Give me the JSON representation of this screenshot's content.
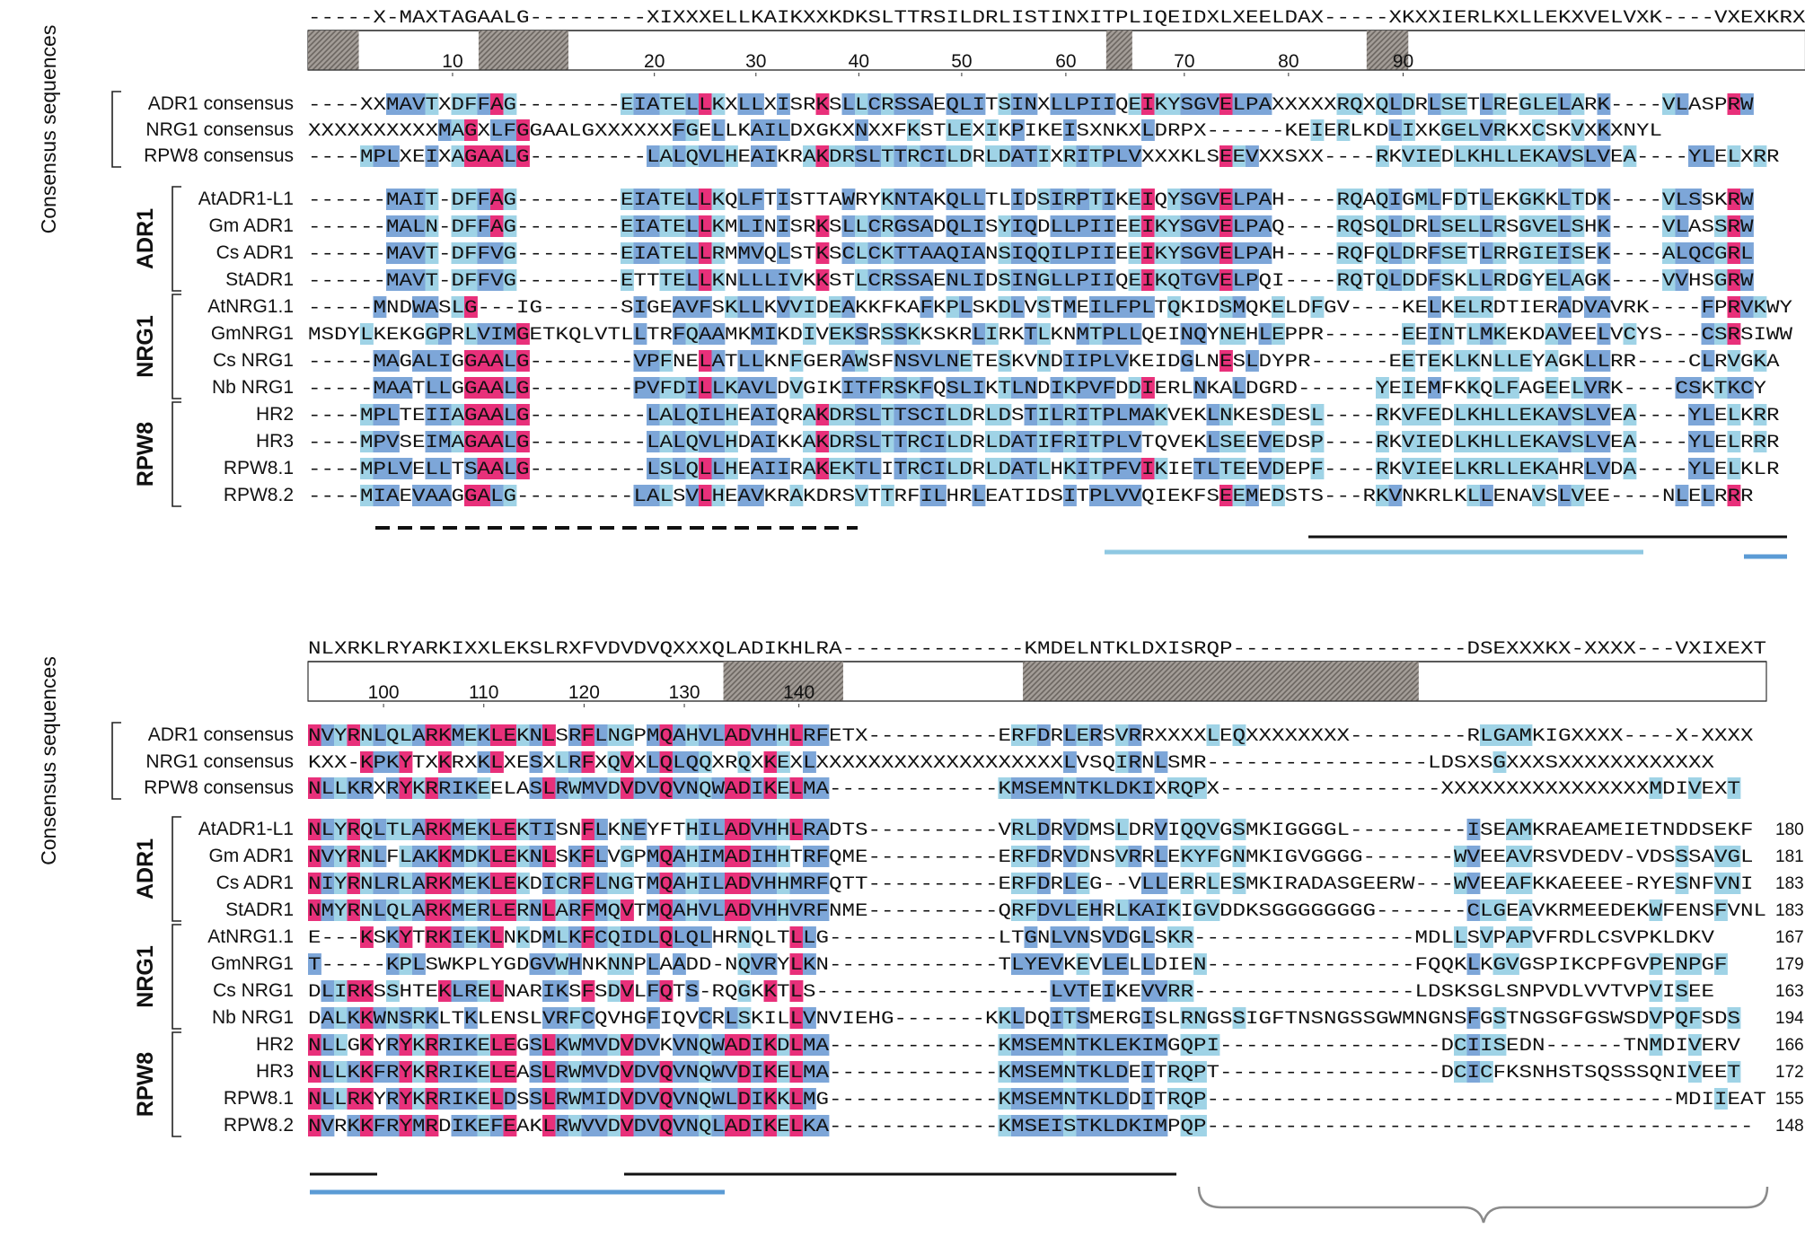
{
  "colors": {
    "conserved": "#e8307a",
    "similar": "#7da6d8",
    "weak": "#9fd3e6",
    "hatch": "#8c8580",
    "line_light": "#8fc8e2",
    "line_blue": "#5b9bd5",
    "brace": "#8a8a8a"
  },
  "axis_labels": {
    "consensus_group": "Consensus sequences"
  },
  "group_labels": {
    "adr1": "ADR1",
    "nrg1": "NRG1",
    "rpw8": "RPW8"
  },
  "blocks": [
    {
      "consensus": "-----X-MAXTAGAALG---------XIXXXELLKAIKXXKDKSLTTRSILDRLISTINXITPLIQEIDXLXEELDAX-----XKXXIERLKXLLEKXVELVXK----VXEXKRX",
      "ticks": [
        "10",
        "20",
        "30",
        "40",
        "50",
        "60",
        "70",
        "80",
        "90"
      ],
      "rows": [
        {
          "name": "ADR1 consensus",
          "seq": "----XXMAVTXDFFAG--------EIATELLKXLLXISRKSLLCRSSAEQLITSINXLLPIIQEIKYSGVELPAXXXXXRQXQLDRLSETLREGLELARK----VLASPRW",
          "len": ""
        },
        {
          "name": "NRG1 consensus",
          "seq": "XXXXXXXXXXMAGXLFGGAALGXXXXXXFGELLKAILDXGKXNXXFKSTLEXIKPIKEISXNKXLDRPX------KEIERLKDLIXKGELVRKXCSKVXKXNYL",
          "len": ""
        },
        {
          "name": "RPW8 consensus",
          "seq": "----MPLXEIXAGAALG---------LALQVLHEAIKRAKDRSLTTRCILDRLDATIXRITPLVXXXKLSEEVXXSXX----RKVIEDLKHLLEKAVSLVEA----YLELXRR",
          "len": ""
        },
        {
          "name": "AtADR1-L1",
          "seq": "------MAIT-DFFAG--------EIATELLKQLFTISTTAWRYKNTAKQLLTLIDSIRPTIKEIQYSGVELPAH----RQAQIGMLFDTLEKGKKLTDK----VLSSKRW",
          "len": ""
        },
        {
          "name": "Gm ADR1",
          "seq": "------MALN-DFFAG--------EIATELLKMLINISRKSLLCRGSADQLISYIQDLLPIIEEIKYSGVELPAQ----RQSQLDRLSELLRSGVELSHK----VLASSRW",
          "len": ""
        },
        {
          "name": "Cs ADR1",
          "seq": "------MAVT-DFFVG--------EIATELLRMMVQLSTKSCLCKTTAAQIANSIQQILPIIEEIKYSGVELPAH----RQFQLDRFSETLRRGIEISEK----ALQCGRL",
          "len": ""
        },
        {
          "name": "StADR1",
          "seq": "------MAVT-DFFVG--------ETTTELLKNLLLIVKKSTLCRSSAENLIDSINGLLPIIQEIKQTGVELPQI----RQTQLDDFSKLLRDGYELAGK----VVHSGRW",
          "len": ""
        },
        {
          "name": "AtNRG1.1",
          "seq": "-----MNDWASLG---IG------SIGEAVFSKLLKVVIDEAKKFKAFKPLSKDLVSTMEILFPLTQKIDSMQKELDFGV----KELKELRDTIERADVAVRK----FPRVKWY",
          "len": ""
        },
        {
          "name": "GmNRG1",
          "seq": "MSDYLKEKGGPRLVIMGETKQLVTLLTRFQAAMKMIKDIVEKSRSSKKSKRLIRKTLKNMTPLLQEINQYNEHLEPPR------EEINTLMKEKDAVEELVCYS---CSRSIWW",
          "len": ""
        },
        {
          "name": "Cs NRG1",
          "seq": "-----MAGALIGGAALG--------VPFNELATLLKNFGERAWSFNSVLNETESKVNDIIPLVKEIDGLNESLDYPR------EETEKLKNLLEYAGKLLRR----CLRVGKA",
          "len": ""
        },
        {
          "name": "Nb NRG1",
          "seq": "-----MAATLLGGAALG--------PVFDILLKAVLDVGIKITFRSKFQSLIKTLNDIKPVFDDIERLNKALDGRD------YEIEMFKKQLFAGEELVRK----CSKTKCY",
          "len": ""
        },
        {
          "name": "HR2",
          "seq": "----MPLTEIIAGAALG---------LALQILHEAIQRAKDRSLTTSCILDRLDSTILRITPLMAKVEKLNKESDESL----RKVFEDLKHLLEKAVSLVEA----YLELKRR",
          "len": ""
        },
        {
          "name": "HR3",
          "seq": "----MPVSEIMAGAALG---------LALQVLHDAIKKAKDRSLTTRCILDRLDATIFRITPLVTQVEKLSEEVEDSP----RKVIEDLKHLLEKAVSLVEA----YLELRRR",
          "len": ""
        },
        {
          "name": "RPW8.1",
          "seq": "----MPLVELLTSAALG---------LSLQLLHEAIIRAKEKTLITRCILDRLDATLHKITPFVIKIETLTEEVDEPF----RKVIEELKRLLEKAHRLVDA----YLELKLR",
          "len": ""
        },
        {
          "name": "RPW8.2",
          "seq": "----MIAEVAAGGALG---------LALSVLHEAVKRAKDRSVTTRFILHRLEATIDSITPLVVQIEKFSEEMEDSTS---RKVNKRLKLLENAVSLVEE----NLELRRR",
          "len": ""
        }
      ]
    },
    {
      "consensus": "NLXRKLRYARKIXXLEKSLRXFVDVDVQXXXQLADIKHLRA--------------KMDELNTKLDXISRQP------------------DSEXXXKX-XXXX---VXIXEXT",
      "ticks": [
        "100",
        "110",
        "120",
        "130",
        "140"
      ],
      "rows": [
        {
          "name": "ADR1 consensus",
          "seq": "NVYRNLQLARKMEKLEKNLSRFLNGPMQAHVLADVHHLRFETX----------ERFDRLERSVRRXXXXLEQXXXXXXXX---------RLGAMKIGXXXX----X-XXXX",
          "len": ""
        },
        {
          "name": "NRG1 consensus",
          "seq": "KXX-KPKYTXKRXKLXESXLRFXQVXLQLQQXRQXKEXLXXXXXXXXXXXXXXXXXXXLVSQIRNLSMR-----------------LDSXSGXXXSXXXXXXXXXXXX",
          "len": ""
        },
        {
          "name": "RPW8 consensus",
          "seq": "NLLKRXRYKRRIKEELASLRWMVDVDVQVNQWADIKELMA-------------KMSEMNTKLDKIXRQPX-----------------XXXXXXXXXXXXXXXXMDIVEXT",
          "len": ""
        },
        {
          "name": "AtADR1-L1",
          "seq": "NLYRQLTLARKMEKLEKTISNFLKNEYFTHILADVHHLRADTS----------VRLDRVDMSLDRVIQQVGSMKIGGGGL---------ISEAMKRAEAMEIETNDDSEKF",
          "len": "180"
        },
        {
          "name": "Gm ADR1",
          "seq": "NVYRNLFLAKKMDKLEKNLSKFLVGPMQAHIMADIHHTRFQME----------ERFDRVDNSVRRLEKYFGNMKIGVGGGG-------WVEEAVRSVDEDV-VDSSSAVGL",
          "len": "181"
        },
        {
          "name": "Cs ADR1",
          "seq": "NIYRNLRLARKMEKLEKDICRFLNGTMQAHILADVHHMRFQTT----------ERFDRLEG--VLLERRLESMKIRADASGEERW---WVEEAFKKAEEEE-RYESNFVNI",
          "len": "183"
        },
        {
          "name": "StADR1",
          "seq": "NMYRNLQLARKMERLERNLARFMQVTMQAHVLADVHHVRFNME----------QRFDVLEHRLKAIKIGVDDKSGGGGGGGG-------CLGEAVKRMEEDEKWFENSFVNL",
          "len": "183"
        },
        {
          "name": "AtNRG1.1",
          "seq": "E---KSKYTRKIEKLNKDMLKFCQIDLQLQLHRNQLTLLG-------------LTGNLVNSVDGLSKR-----------------MDLLSVPAPVFRDLCSVPKLDKV",
          "len": "167"
        },
        {
          "name": "GmNRG1",
          "seq": "T-----KPLSWKPLYGDGVWHNKNNPLAADD-NQVRYLKN-------------TLYEVKEVLELLDIEN----------------FQQKLKGVGSPIKCPFGVPENPGF",
          "len": "179"
        },
        {
          "name": "Cs NRG1",
          "seq": "DLIRKSSHTEKLRELNARIKSFSDVLFQTS-RQGKKTLS------------------LVTEIKEVVRR-----------------LDSKSGLSNPVDLVVTVPVISEE",
          "len": "163"
        },
        {
          "name": "Nb NRG1",
          "seq": "DALKKWNSRKLTKLENSLVRFCQVHGFIQVCRLSKILLVNVIEHG-------KKLDQITSMERGISLRNGSSIGFTNSNGSSGWMNGNSFGSTNGSGFGSWSDVPQFSDS",
          "len": "194"
        },
        {
          "name": "HR2",
          "seq": "NLLGKYRYKRRIKELEGSLKWMVDVDVKVNQWADIKDLMA-------------KMSEMNTKLEKIMGQPI-----------------DCIISEDN------TNMDIVERV",
          "len": "166"
        },
        {
          "name": "HR3",
          "seq": "NLLKKFRYKRRIKELEASLRWMVDVDVQVNQWVDIKELMA-------------KMSEMNTKLDEITRQPT-----------------DCICFKSNHSTSQSSSQNIVEET",
          "len": "172"
        },
        {
          "name": "RPW8.1",
          "seq": "NLLRKYRYKRRIKELDSSLRWMIDVDVQVNQWLDIKKLMG-------------KMSEMNTKLDDITRQP------------------------------------MDIIEAT",
          "len": "155"
        },
        {
          "name": "RPW8.2",
          "seq": "NVRKKFRYMRDIKEFEAKLRWVVDVDVQVNQLADIKELKA-------------KMSEISTKLDKIMPQP------------------------------------------",
          "len": "148"
        }
      ]
    }
  ]
}
